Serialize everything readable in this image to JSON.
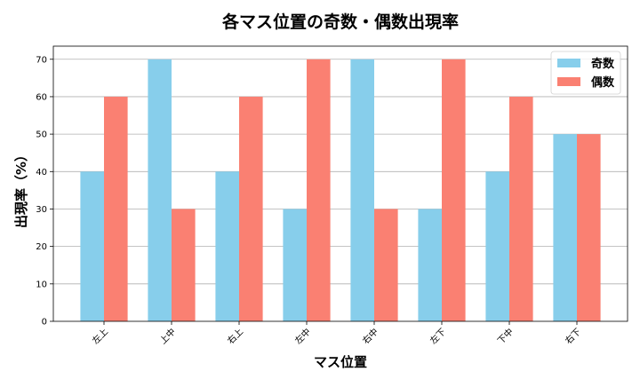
{
  "chart_data": {
    "type": "bar",
    "title": "各マス位置の奇数・偶数出現率",
    "xlabel": "マス位置",
    "ylabel": "出現率（%）",
    "categories": [
      "左上",
      "上中",
      "右上",
      "左中",
      "右中",
      "左下",
      "下中",
      "右下"
    ],
    "series": [
      {
        "name": "奇数",
        "color": "#87ceeb",
        "values": [
          40,
          70,
          40,
          30,
          70,
          30,
          40,
          50
        ]
      },
      {
        "name": "偶数",
        "color": "#fa8072",
        "values": [
          60,
          30,
          60,
          70,
          30,
          70,
          60,
          50
        ]
      }
    ],
    "ylim": [
      0,
      73.5
    ],
    "yticks": [
      0,
      10,
      20,
      30,
      40,
      50,
      60,
      70
    ],
    "grid": "y",
    "legend": "top-right"
  }
}
